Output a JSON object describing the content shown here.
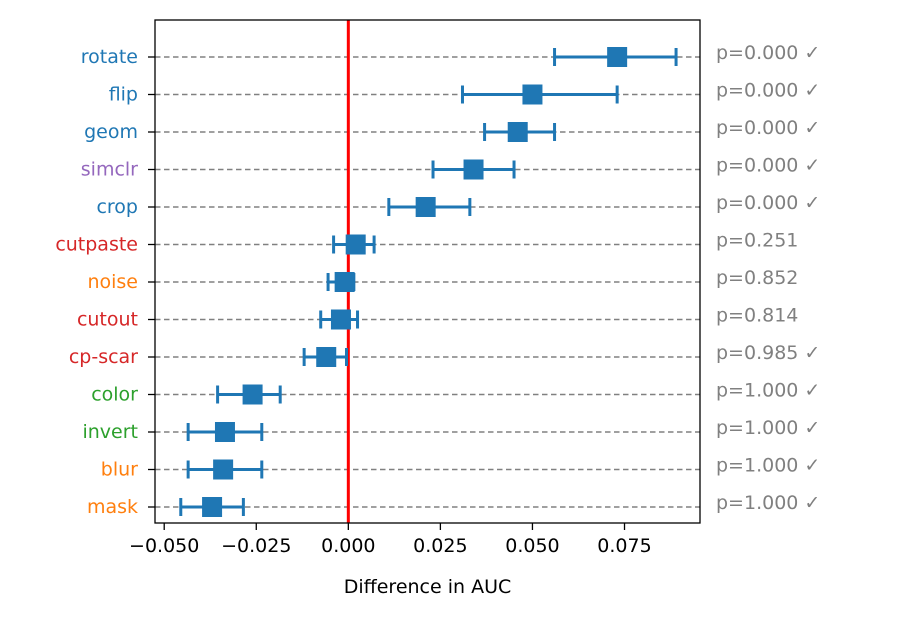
{
  "chart_data": {
    "type": "scatter",
    "xlabel": "Difference in AUC",
    "ylabel": "",
    "title": "",
    "xlim": [
      -0.0525,
      0.0955
    ],
    "xticks": [
      -0.05,
      -0.025,
      0.0,
      0.025,
      0.05,
      0.075
    ],
    "xtick_labels": [
      "−0.050",
      "−0.025",
      "0.000",
      "0.025",
      "0.050",
      "0.075"
    ],
    "grid": "horizontal dashed",
    "reference_line": {
      "x": 0.0,
      "color": "#ff0000"
    },
    "marker_color": "#1f77b4",
    "categories": [
      {
        "label": "rotate",
        "color": "#1f77b4",
        "mean": 0.073,
        "low": 0.056,
        "high": 0.089,
        "p": "p=0.000 ✓"
      },
      {
        "label": "flip",
        "color": "#1f77b4",
        "mean": 0.05,
        "low": 0.031,
        "high": 0.073,
        "p": "p=0.000 ✓"
      },
      {
        "label": "geom",
        "color": "#1f77b4",
        "mean": 0.046,
        "low": 0.037,
        "high": 0.056,
        "p": "p=0.000 ✓"
      },
      {
        "label": "simclr",
        "color": "#9467bd",
        "mean": 0.034,
        "low": 0.023,
        "high": 0.045,
        "p": "p=0.000 ✓"
      },
      {
        "label": "crop",
        "color": "#1f77b4",
        "mean": 0.021,
        "low": 0.011,
        "high": 0.033,
        "p": "p=0.000 ✓"
      },
      {
        "label": "cutpaste",
        "color": "#d62728",
        "mean": 0.002,
        "low": -0.004,
        "high": 0.007,
        "p": "p=0.251"
      },
      {
        "label": "noise",
        "color": "#ff7f0e",
        "mean": -0.001,
        "low": -0.0055,
        "high": 0.0015,
        "p": "p=0.852"
      },
      {
        "label": "cutout",
        "color": "#d62728",
        "mean": -0.002,
        "low": -0.0075,
        "high": 0.0025,
        "p": "p=0.814"
      },
      {
        "label": "cp-scar",
        "color": "#d62728",
        "mean": -0.006,
        "low": -0.012,
        "high": -0.0005,
        "p": "p=0.985 ✓"
      },
      {
        "label": "color",
        "color": "#2ca02c",
        "mean": -0.026,
        "low": -0.0355,
        "high": -0.0185,
        "p": "p=1.000 ✓"
      },
      {
        "label": "invert",
        "color": "#2ca02c",
        "mean": -0.0335,
        "low": -0.0435,
        "high": -0.0235,
        "p": "p=1.000 ✓"
      },
      {
        "label": "blur",
        "color": "#ff7f0e",
        "mean": -0.034,
        "low": -0.0435,
        "high": -0.0235,
        "p": "p=1.000 ✓"
      },
      {
        "label": "mask",
        "color": "#ff7f0e",
        "mean": -0.037,
        "low": -0.0455,
        "high": -0.0285,
        "p": "p=1.000 ✓"
      }
    ]
  }
}
